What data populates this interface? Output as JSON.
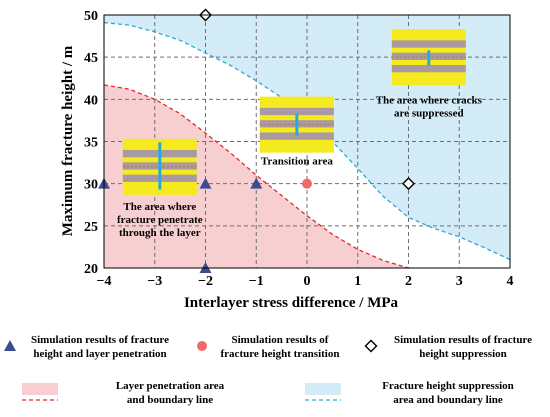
{
  "chart_data": {
    "type": "scatter",
    "xlabel": "Interlayer stress difference / MPa",
    "ylabel": "Maximum fracture height / m",
    "xlim": [
      -4,
      4
    ],
    "ylim": [
      20,
      50
    ],
    "x_ticks": [
      "−4",
      "−3",
      "−2",
      "−1",
      "0",
      "1",
      "2",
      "3",
      "4"
    ],
    "y_ticks": [
      "20",
      "25",
      "30",
      "35",
      "40",
      "45",
      "50"
    ],
    "grid": true,
    "series": [
      {
        "name": "Simulation results of fracture height and layer penetration",
        "marker": "triangle",
        "color": "#3d4c8e",
        "points": [
          [
            -4,
            30
          ],
          [
            -2,
            30
          ],
          [
            -1,
            30
          ],
          [
            -2,
            20
          ]
        ]
      },
      {
        "name": "Simulation results of fracture height transition",
        "marker": "circle",
        "color": "#f06a6a",
        "points": [
          [
            0,
            30
          ]
        ]
      },
      {
        "name": "Simulation results of fracture height suppression",
        "marker": "diamond",
        "color": "#000000",
        "points": [
          [
            -2,
            50
          ],
          [
            2,
            30
          ]
        ]
      }
    ],
    "regions": [
      {
        "name": "Layer penetration area and boundary line",
        "fill": "#f8cfd1",
        "line_color": "#e02b2b",
        "boundary": [
          [
            -4,
            41.7
          ],
          [
            -3.5,
            41.2
          ],
          [
            -3,
            40
          ],
          [
            -2.5,
            38.3
          ],
          [
            -2,
            36
          ],
          [
            -1.5,
            33.6
          ],
          [
            -1,
            31
          ],
          [
            -0.5,
            28.6
          ],
          [
            0,
            26.2
          ],
          [
            0.5,
            24
          ],
          [
            1,
            22.2
          ],
          [
            1.5,
            20.9
          ],
          [
            2,
            20
          ]
        ]
      },
      {
        "name": "Fracture height suppression area and boundary line",
        "fill": "#d3ecf7",
        "line_color": "#2aa9d8",
        "boundary": [
          [
            -4,
            49.1
          ],
          [
            -3.5,
            48.8
          ],
          [
            -3,
            48
          ],
          [
            -2.5,
            47
          ],
          [
            -2,
            45.5
          ],
          [
            -1.5,
            44
          ],
          [
            -1,
            42.2
          ],
          [
            -0.5,
            40.2
          ],
          [
            0,
            37.5
          ],
          [
            0.5,
            35
          ],
          [
            1,
            31.8
          ],
          [
            1.5,
            28.5
          ],
          [
            2,
            26
          ],
          [
            2.5,
            24.7
          ],
          [
            3,
            23.7
          ],
          [
            3.5,
            22.4
          ],
          [
            4,
            21
          ]
        ]
      }
    ],
    "annotations": [
      {
        "lines": [
          "The area where cracks",
          "are suppressed"
        ],
        "x": 2.4,
        "y": 39.5
      },
      {
        "lines": [
          "Transition area"
        ],
        "x": -0.2,
        "y": 32.3
      },
      {
        "lines": [
          "The area where",
          "fracture penetrate",
          "through the layer"
        ],
        "x": -2.9,
        "y": 26.9
      }
    ],
    "insets": [
      {
        "name": "suppressed",
        "cx": 2.4,
        "cy": 45,
        "crack": [
          44,
          45.8
        ]
      },
      {
        "name": "transition",
        "cx": -0.2,
        "cy": 37,
        "crack": [
          35.7,
          38.3
        ]
      },
      {
        "name": "penetration",
        "cx": -2.9,
        "cy": 32,
        "crack": [
          29.3,
          34.9
        ]
      }
    ]
  },
  "legend": {
    "items": [
      {
        "lines": [
          "Simulation results of fracture",
          "height and layer penetration"
        ]
      },
      {
        "lines": [
          "Simulation results of",
          "fracture height transition"
        ]
      },
      {
        "lines": [
          "Simulation results of fracture",
          "height suppression"
        ]
      },
      {
        "lines": [
          "Layer penetration area",
          "and boundary line"
        ]
      },
      {
        "lines": [
          "Fracture height suppression",
          "area and boundary line"
        ]
      }
    ]
  },
  "colors": {
    "inset_yellow": "#f5ea1e",
    "inset_gray": "#a89aa0",
    "crack": "#2aa9d8",
    "grid": "#6f6f6f"
  }
}
